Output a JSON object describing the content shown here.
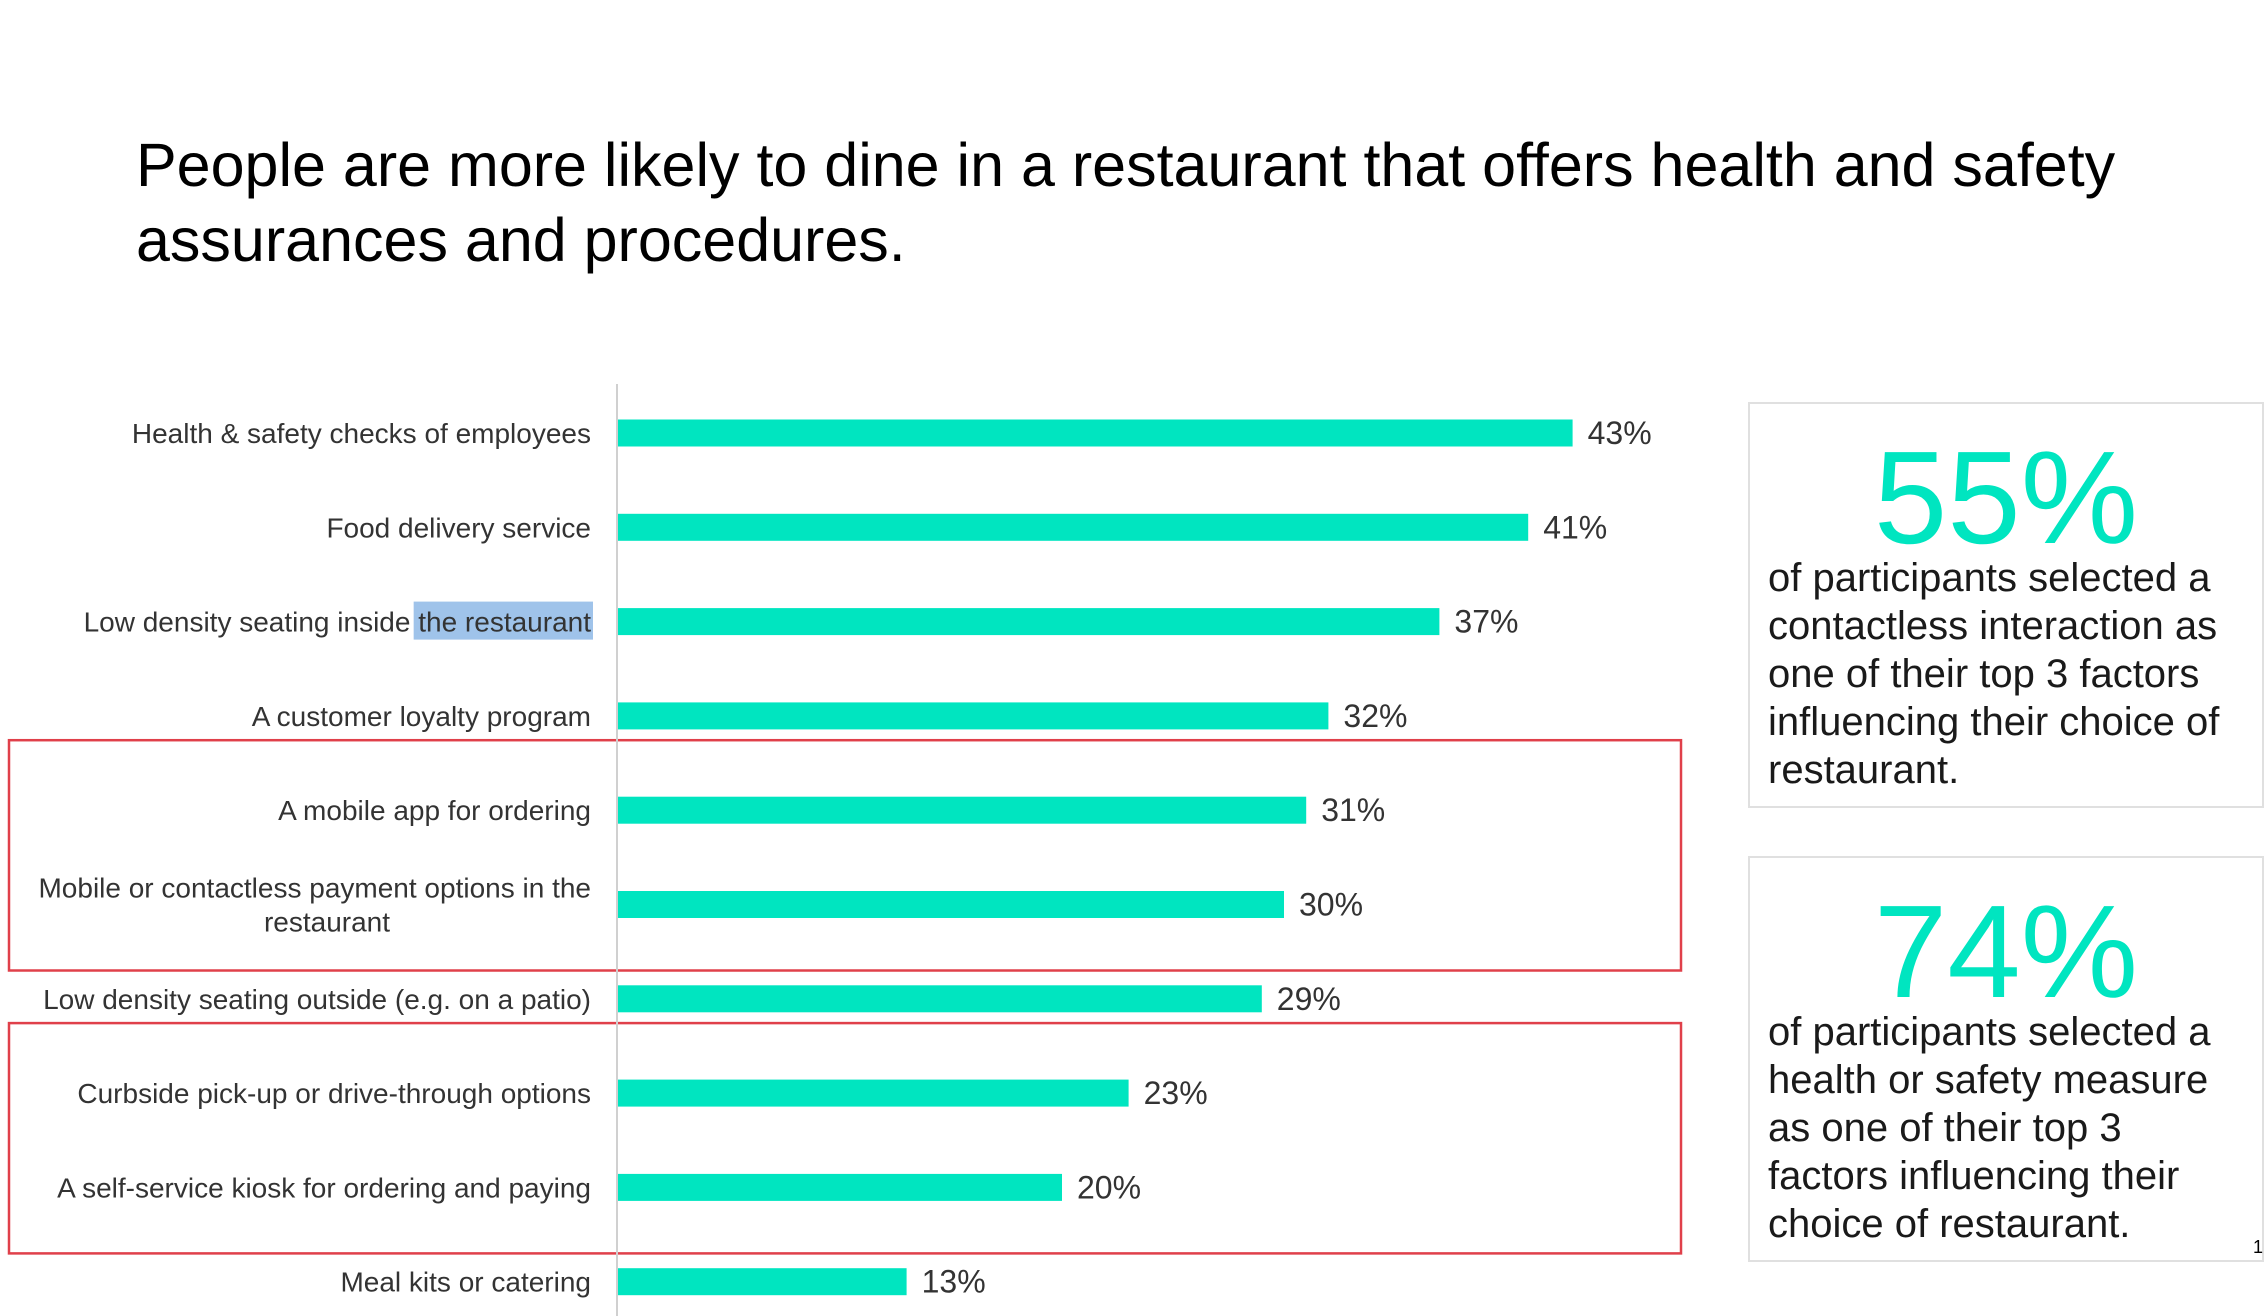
{
  "page": {
    "title": "People are more likely to dine in a restaurant that offers health and safety assurances and procedures.",
    "page_number": "1"
  },
  "colors": {
    "bar": "#00E5C0",
    "accent": "#00E5C0",
    "highlight_box": "#E0404A",
    "selection": "#8EB8E6"
  },
  "selected_text": "the restaurant",
  "chart_data": {
    "type": "bar",
    "orientation": "horizontal",
    "categories": [
      "Health & safety checks of employees",
      "Food delivery service",
      "Low density seating inside the restaurant",
      "A customer loyalty program",
      "A mobile app for ordering",
      "Mobile or contactless payment options in the restaurant",
      "Low density seating outside (e.g. on a patio)",
      "Curbside pick-up or drive-through options",
      "A self-service kiosk for ordering and paying",
      "Meal kits or catering"
    ],
    "values": [
      43,
      41,
      37,
      32,
      31,
      30,
      29,
      23,
      20,
      13
    ],
    "value_labels": [
      "43%",
      "41%",
      "37%",
      "32%",
      "31%",
      "30%",
      "29%",
      "23%",
      "20%",
      "13%"
    ],
    "unit": "%",
    "xlim": [
      0,
      50
    ],
    "grid": false,
    "highlighted_groups": [
      [
        "A mobile app for ordering",
        "Mobile or contactless payment options in the restaurant"
      ],
      [
        "Curbside pick-up or drive-through options",
        "A self-service kiosk for ordering and paying"
      ]
    ]
  },
  "callouts": [
    {
      "stat": "55%",
      "text": "of participants selected a contactless interaction as one of their top 3 factors influencing their choice of restaurant."
    },
    {
      "stat": "74%",
      "text": "of participants selected a health or safety measure as one of their top 3 factors influencing their choice of restaurant."
    }
  ]
}
